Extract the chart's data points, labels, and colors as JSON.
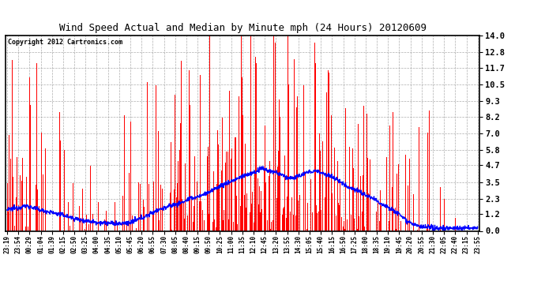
{
  "title": "Wind Speed Actual and Median by Minute mph (24 Hours) 20120609",
  "copyright": "Copyright 2012 Cartronics.com",
  "bar_color": "#FF0000",
  "line_color": "#0000FF",
  "background_color": "#FFFFFF",
  "grid_color": "#AAAAAA",
  "yticks": [
    0.0,
    1.2,
    2.3,
    3.5,
    4.7,
    5.8,
    7.0,
    8.2,
    9.3,
    10.5,
    11.7,
    12.8,
    14.0
  ],
  "ylim": [
    0.0,
    14.0
  ],
  "x_tick_labels": [
    "23:19",
    "23:54",
    "00:29",
    "01:04",
    "01:39",
    "02:15",
    "02:50",
    "03:25",
    "04:00",
    "04:35",
    "05:10",
    "05:45",
    "06:20",
    "06:55",
    "07:30",
    "08:05",
    "08:40",
    "09:15",
    "09:50",
    "10:25",
    "11:00",
    "11:35",
    "12:10",
    "12:45",
    "13:20",
    "13:55",
    "14:30",
    "15:05",
    "15:40",
    "16:15",
    "16:50",
    "17:25",
    "18:00",
    "18:35",
    "19:10",
    "19:45",
    "20:20",
    "20:55",
    "21:30",
    "22:05",
    "22:40",
    "23:15",
    "23:55"
  ],
  "n_minutes": 1440
}
